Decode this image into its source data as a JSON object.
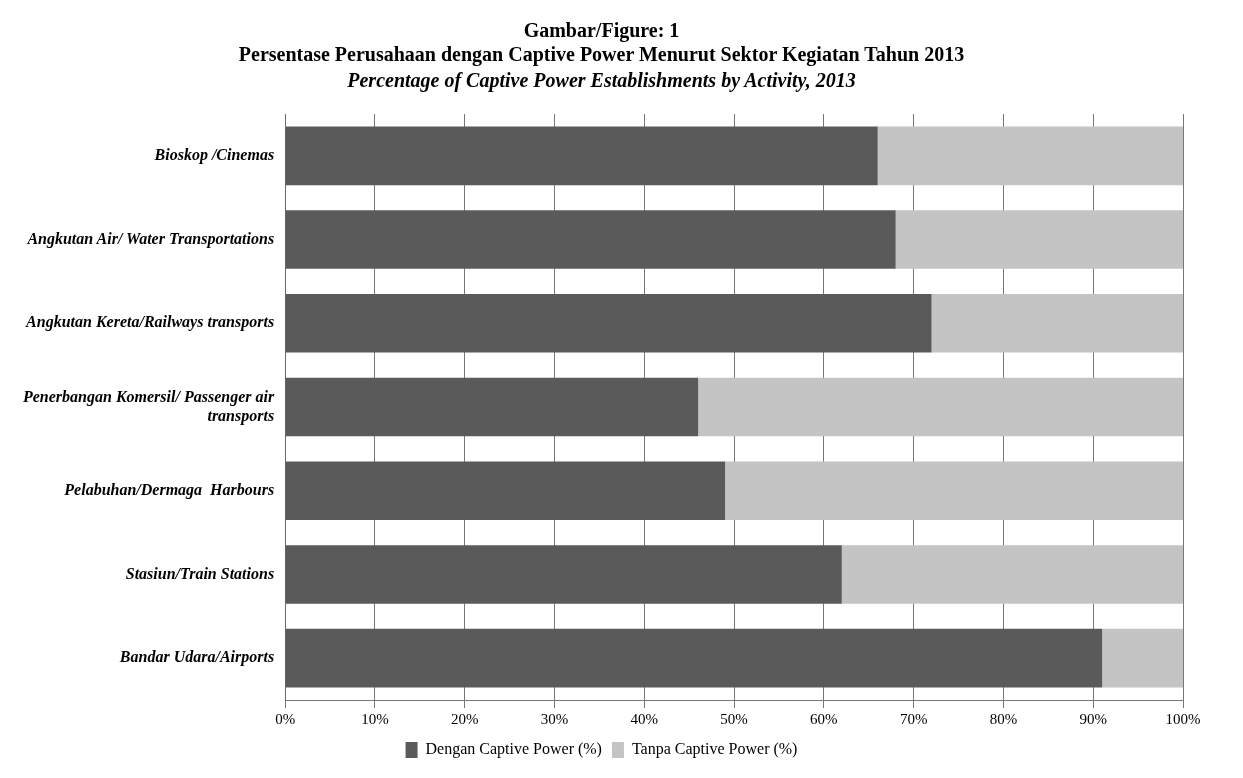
{
  "chart_data": {
    "type": "bar",
    "orientation": "horizontal",
    "stacked": true,
    "title": "Gambar/Figure: 1\nPersentase Perusahaan dengan Captive Power Menurut Sektor Kegiatan Tahun 2013",
    "subtitle": "Percentage of Captive Power Establishments by Activity, 2013",
    "categories": [
      "Bioskop /Cinemas",
      "Angkutan Air/ Water Transportations",
      "Angkutan Kereta/Railways transports",
      "Penerbangan Komersil/ Passenger air transports",
      "Pelabuhan/Dermaga  Harbours",
      "Stasiun/Train Stations",
      "Bandar Udara/Airports"
    ],
    "series": [
      {
        "name": "Dengan Captive Power (%)",
        "color": "#5a5a5a",
        "values": [
          66,
          68,
          72,
          46,
          49,
          62,
          91
        ]
      },
      {
        "name": "Tanpa Captive Power (%)",
        "color": "#c4c4c4",
        "values": [
          34,
          32,
          28,
          54,
          51,
          38,
          9
        ]
      }
    ],
    "xlim": [
      0,
      100
    ],
    "xticks": [
      {
        "value": 0,
        "label": "0%"
      },
      {
        "value": 10,
        "label": "10%"
      },
      {
        "value": 20,
        "label": "20%"
      },
      {
        "value": 30,
        "label": "30%"
      },
      {
        "value": 40,
        "label": "40%"
      },
      {
        "value": 50,
        "label": "50%"
      },
      {
        "value": 60,
        "label": "60%"
      },
      {
        "value": 70,
        "label": "70%"
      },
      {
        "value": 80,
        "label": "80%"
      },
      {
        "value": 90,
        "label": "90%"
      },
      {
        "value": 100,
        "label": "100%"
      }
    ],
    "grid": "x",
    "legend": "bottom"
  }
}
